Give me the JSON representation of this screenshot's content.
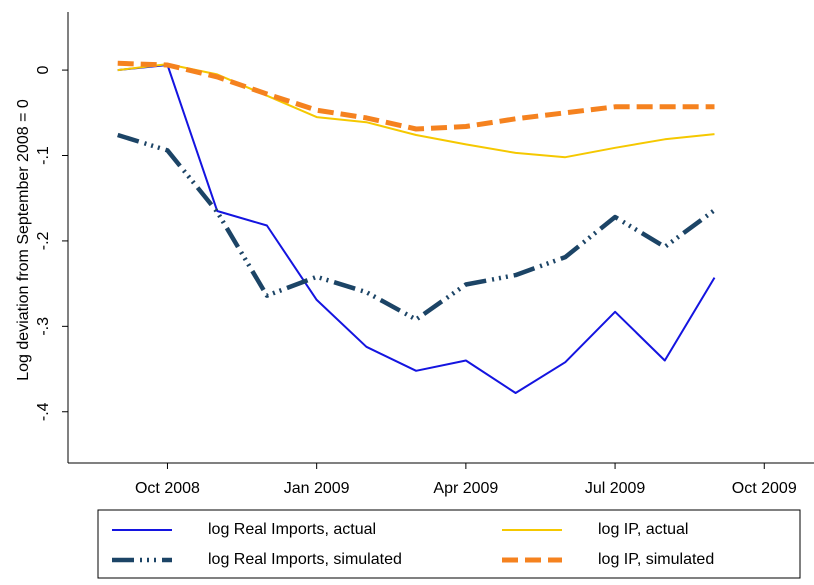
{
  "chart_data": {
    "type": "line",
    "y_label": "Log deviation from September 2008 = 0",
    "x": [
      "2008-09",
      "2008-10",
      "2008-11",
      "2008-12",
      "2009-01",
      "2009-02",
      "2009-03",
      "2009-04",
      "2009-05",
      "2009-06",
      "2009-07",
      "2009-08",
      "2009-09"
    ],
    "series": [
      {
        "name": "log Real Imports, actual",
        "color": "#1414e0",
        "line_style": "solid",
        "values": [
          0,
          0.006,
          -0.165,
          -0.182,
          -0.269,
          -0.324,
          -0.352,
          -0.34,
          -0.378,
          -0.342,
          -0.283,
          -0.34,
          -0.243
        ]
      },
      {
        "name": "log IP, actual",
        "color": "#f5c800",
        "line_style": "solid",
        "values": [
          0,
          0.007,
          -0.005,
          -0.03,
          -0.055,
          -0.061,
          -0.076,
          -0.087,
          -0.097,
          -0.102,
          -0.091,
          -0.081,
          -0.075
        ]
      },
      {
        "name": "log Real Imports, simulated",
        "color": "#1c4466",
        "line_style": "dash-dot",
        "values": [
          -0.076,
          -0.094,
          -0.166,
          -0.264,
          -0.242,
          -0.26,
          -0.292,
          -0.251,
          -0.24,
          -0.219,
          -0.172,
          -0.207,
          -0.164
        ]
      },
      {
        "name": "log IP, simulated",
        "color": "#f5821f",
        "line_style": "dash",
        "values": [
          0.008,
          0.006,
          -0.008,
          -0.028,
          -0.047,
          -0.056,
          -0.069,
          -0.066,
          -0.057,
          -0.05,
          -0.043,
          -0.043,
          -0.043
        ]
      }
    ],
    "xlim": [
      "2008-08",
      "2009-11"
    ],
    "xticks": [
      {
        "value": "2008-10",
        "label": "Oct 2008"
      },
      {
        "value": "2009-01",
        "label": "Jan 2009"
      },
      {
        "value": "2009-04",
        "label": "Apr 2009"
      },
      {
        "value": "2009-07",
        "label": "Jul 2009"
      },
      {
        "value": "2009-10",
        "label": "Oct 2009"
      }
    ],
    "ylim": [
      -0.46,
      0.068
    ],
    "yticks": [
      0,
      {
        "value": -0.1,
        "label": "-.1"
      },
      {
        "value": -0.2,
        "label": "-.2"
      },
      {
        "value": -0.3,
        "label": "-.3"
      },
      {
        "value": -0.4,
        "label": "-.4"
      }
    ],
    "grid": false,
    "legend": "bottom"
  }
}
